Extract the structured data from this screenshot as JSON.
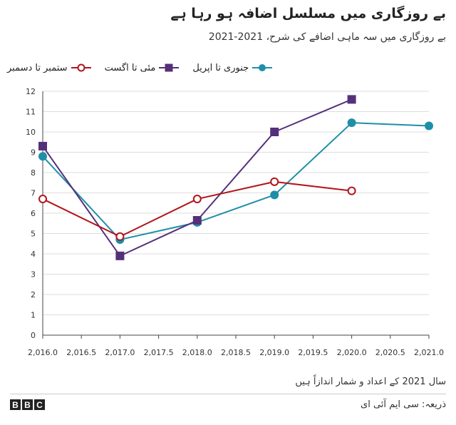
{
  "header": {
    "title": "بے روزگاری میں مسلسل اضافہ ہو رہا ہے",
    "subtitle": "بے روزگاری میں سہ ماہی اضافے کی شرح، 2021-2021"
  },
  "colors": {
    "series1": "#1f8fa8",
    "series2": "#55307a",
    "series3": "#b0151c",
    "axis": "#444444",
    "grid": "#dddddd"
  },
  "chart_data": {
    "type": "line",
    "title": "بے روزگاری میں مسلسل اضافہ ہو رہا ہے",
    "xlabel": "",
    "ylabel": "",
    "xlim": [
      2016.0,
      2021.0
    ],
    "ylim": [
      0,
      12
    ],
    "x_ticks": [
      2016.0,
      2016.5,
      2017.0,
      2017.5,
      2018.0,
      2018.5,
      2019.0,
      2019.5,
      2020.0,
      2020.5,
      2021.0
    ],
    "x_tick_labels": [
      "2,016.0",
      "2,016.5",
      "2,017.0",
      "2,017.5",
      "2,018.0",
      "2,018.5",
      "2,019.0",
      "2,019.5",
      "2,020.0",
      "2,020.5",
      "2,021.0"
    ],
    "y_ticks": [
      0,
      1,
      2,
      3,
      4,
      5,
      6,
      7,
      8,
      9,
      10,
      11,
      12
    ],
    "y_tick_labels": [
      "0",
      "1",
      "2",
      "3",
      "4",
      "5",
      "6",
      "7",
      "8",
      "9",
      "10",
      "11",
      "12"
    ],
    "legend_position": "top-left",
    "series": [
      {
        "name": "جنوری تا اپریل",
        "marker": "circle-filled",
        "color": "#1f8fa8",
        "x": [
          2016,
          2017,
          2018,
          2019,
          2020,
          2021
        ],
        "y": [
          8.8,
          4.7,
          5.55,
          6.9,
          10.45,
          10.3
        ]
      },
      {
        "name": "مئی تا اگست",
        "marker": "square",
        "color": "#55307a",
        "x": [
          2016,
          2017,
          2018,
          2019,
          2020
        ],
        "y": [
          9.3,
          3.9,
          5.65,
          10.0,
          11.6
        ]
      },
      {
        "name": "ستمبر تا دسمبر",
        "marker": "circle-open",
        "color": "#b0151c",
        "x": [
          2016,
          2017,
          2018,
          2019,
          2020
        ],
        "y": [
          6.7,
          4.85,
          6.7,
          7.55,
          7.1
        ]
      }
    ]
  },
  "footer": {
    "note": "سال 2021 کے اعداد و شمار اندازاً ہیں",
    "source": "ذریعہ: سی ایم آئی ای",
    "logo_letters": [
      "B",
      "B",
      "C"
    ]
  }
}
